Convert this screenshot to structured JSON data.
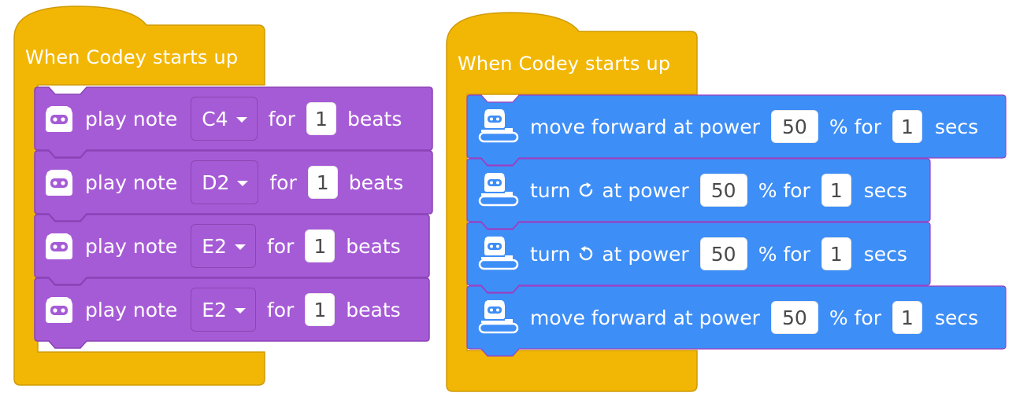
{
  "colors": {
    "event_yellow": "#F2B705",
    "event_border": "#CF9A04",
    "music_purple": "#A65BD6",
    "music_border": "#8A42B5",
    "motion_blue": "#3E8EF7",
    "motion_border": "#9B3FC2"
  },
  "stack_left": {
    "hat_label": "When Codey starts up",
    "blocks": [
      {
        "kind": "music",
        "icon": "codey-face-icon",
        "text": "play note",
        "note": "C4",
        "for": "for",
        "beats": "1",
        "unit": "beats"
      },
      {
        "kind": "music",
        "icon": "codey-face-icon",
        "text": "play note",
        "note": "D2",
        "for": "for",
        "beats": "1",
        "unit": "beats"
      },
      {
        "kind": "music",
        "icon": "codey-face-icon",
        "text": "play note",
        "note": "E2",
        "for": "for",
        "beats": "1",
        "unit": "beats"
      },
      {
        "kind": "music",
        "icon": "codey-face-icon",
        "text": "play note",
        "note": "E2",
        "for": "for",
        "beats": "1",
        "unit": "beats"
      }
    ]
  },
  "stack_right": {
    "hat_label": "When Codey starts up",
    "blocks": [
      {
        "kind": "move",
        "icon": "codey-rocky-icon",
        "text": "move forward at power",
        "power": "50",
        "mid": "% for",
        "secs": "1",
        "unit": "secs"
      },
      {
        "kind": "turn",
        "icon": "codey-rocky-icon",
        "text_a": "turn",
        "rotation_icon": "rotate-clockwise-icon",
        "text_b": "at power",
        "power": "50",
        "mid": "% for",
        "secs": "1",
        "unit": "secs"
      },
      {
        "kind": "turn",
        "icon": "codey-rocky-icon",
        "text_a": "turn",
        "rotation_icon": "rotate-counterclockwise-icon",
        "text_b": "at power",
        "power": "50",
        "mid": "% for",
        "secs": "1",
        "unit": "secs"
      },
      {
        "kind": "move",
        "icon": "codey-rocky-icon",
        "text": "move forward at power",
        "power": "50",
        "mid": "% for",
        "secs": "1",
        "unit": "secs"
      }
    ]
  }
}
